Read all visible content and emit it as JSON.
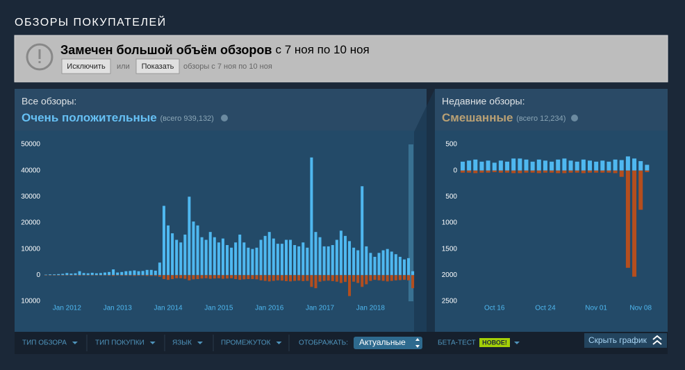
{
  "header": {
    "title": "ОБЗОРЫ ПОКУПАТЕЛЕЙ"
  },
  "notice": {
    "title": "Замечен большой объём обзоров",
    "range": "с 7 ноя по 10 ноя",
    "exclude": "Исключить",
    "or": "или",
    "show": "Показать",
    "note": "обзоры с 7 ноя по 10 ноя"
  },
  "summary_all": {
    "label": "Все обзоры:",
    "rating": "Очень положительные",
    "total": "(всего 939,132)"
  },
  "summary_recent": {
    "label": "Недавние обзоры:",
    "rating": "Смешанные",
    "total": "(всего 12,234)"
  },
  "chart_data": [
    {
      "type": "bar",
      "categories": [
        null,
        null,
        null,
        null,
        null,
        "Jan 2012",
        null,
        null,
        null,
        null,
        null,
        null,
        null,
        null,
        null,
        null,
        null,
        "Jan 2013",
        null,
        null,
        null,
        null,
        null,
        null,
        null,
        null,
        null,
        null,
        null,
        "Jan 2014",
        null,
        null,
        null,
        null,
        null,
        null,
        null,
        null,
        null,
        null,
        null,
        "Jan 2015",
        null,
        null,
        null,
        null,
        null,
        null,
        null,
        null,
        null,
        null,
        null,
        "Jan 2016",
        null,
        null,
        null,
        null,
        null,
        null,
        null,
        null,
        null,
        null,
        null,
        "Jan 2017",
        null,
        null,
        null,
        null,
        null,
        null,
        null,
        null,
        null,
        null,
        null,
        "Jan 2018",
        null,
        null,
        null,
        null,
        null,
        null,
        null,
        null,
        null,
        null
      ],
      "series": [
        {
          "color": "#4fb8f0",
          "values": [
            200,
            300,
            300,
            400,
            500,
            800,
            600,
            700,
            1500,
            800,
            700,
            900,
            700,
            800,
            1000,
            1200,
            2200,
            1000,
            1200,
            1500,
            1600,
            1800,
            1500,
            1600,
            2000,
            2000,
            1700,
            4800,
            26500,
            19000,
            16000,
            13500,
            12500,
            15500,
            30000,
            20500,
            19000,
            14500,
            13500,
            16500,
            14500,
            12500,
            14000,
            11500,
            10500,
            12500,
            15500,
            12500,
            10500,
            10000,
            10500,
            13500,
            15000,
            16500,
            14000,
            12000,
            12000,
            13500,
            13500,
            11500,
            11000,
            12500,
            10500,
            45000,
            16500,
            14500,
            11000,
            11000,
            11500,
            13500,
            17000,
            15000,
            13000,
            10500,
            9500,
            34000,
            11000,
            8500,
            7000,
            8500,
            9500,
            10000,
            9000,
            8000,
            7000,
            6000,
            6500,
            1500
          ]
        },
        {
          "color": "#b44e1e",
          "values": [
            -50,
            -50,
            -50,
            -50,
            -100,
            -100,
            -100,
            -100,
            -200,
            -100,
            -100,
            -100,
            -100,
            -100,
            -100,
            -200,
            -300,
            -100,
            -200,
            -200,
            -200,
            -300,
            -200,
            -200,
            -300,
            -300,
            -300,
            -600,
            -1500,
            -1800,
            -1500,
            -1200,
            -1200,
            -1400,
            -2000,
            -1600,
            -1500,
            -1300,
            -1200,
            -1400,
            -1300,
            -1200,
            -1400,
            -1300,
            -1200,
            -1500,
            -1800,
            -1600,
            -1500,
            -1500,
            -1600,
            -2000,
            -2200,
            -2400,
            -2200,
            -2000,
            -2100,
            -2300,
            -2400,
            -2200,
            -2100,
            -2300,
            -2200,
            -4500,
            -5000,
            -2500,
            -2200,
            -2100,
            -2300,
            -2500,
            -3000,
            -2600,
            -8000,
            -2500,
            -3000,
            -4500,
            -3500,
            -2200,
            -1800,
            -2000,
            -2200,
            -2400,
            -2200,
            -2000,
            -1900,
            -1800,
            -2000,
            -5000
          ]
        }
      ],
      "ylim": [
        -10000,
        50000
      ],
      "yticks": [
        {
          "value": -10000,
          "label": "10000"
        },
        0,
        10000,
        20000,
        30000,
        40000,
        50000
      ]
    },
    {
      "type": "bar",
      "categories": [
        null,
        null,
        null,
        null,
        null,
        "Oct 16",
        null,
        null,
        null,
        null,
        null,
        null,
        null,
        "Oct 24",
        null,
        null,
        null,
        null,
        null,
        null,
        null,
        "Nov 01",
        null,
        null,
        null,
        null,
        null,
        null,
        "Nov 08",
        null
      ],
      "series": [
        {
          "color": "#4fb8f0",
          "values": [
            170,
            190,
            210,
            170,
            190,
            150,
            190,
            170,
            230,
            230,
            210,
            170,
            210,
            190,
            170,
            210,
            230,
            190,
            170,
            210,
            190,
            170,
            190,
            170,
            210,
            200,
            270,
            230,
            180,
            110
          ]
        },
        {
          "color": "#b44e1e",
          "values": [
            -40,
            -40,
            -50,
            -40,
            -40,
            -30,
            -40,
            -40,
            -50,
            -50,
            -40,
            -40,
            -50,
            -40,
            -40,
            -50,
            -50,
            -40,
            -40,
            -50,
            -40,
            -40,
            -40,
            -40,
            -50,
            -120,
            -1860,
            -2030,
            -750,
            -30
          ]
        }
      ],
      "ylim": [
        -2500,
        500
      ],
      "yticks": [
        {
          "value": -2500,
          "label": "2500"
        },
        {
          "value": -2000,
          "label": "2000"
        },
        {
          "value": -1500,
          "label": "1500"
        },
        {
          "value": -1000,
          "label": "1000"
        },
        {
          "value": -500,
          "label": "500"
        },
        0,
        500
      ]
    }
  ],
  "filters": [
    "ТИП ОБЗОРА",
    "ТИП ПОКУПКИ",
    "ЯЗЫК",
    "ПРОМЕЖУТОК"
  ],
  "display": {
    "label": "ОТОБРАЖАТЬ:",
    "value": "Актуальные"
  },
  "beta": {
    "label": "БЕТА-ТЕСТ",
    "badge": "НОВОЕ!"
  },
  "hide": "Скрыть график"
}
